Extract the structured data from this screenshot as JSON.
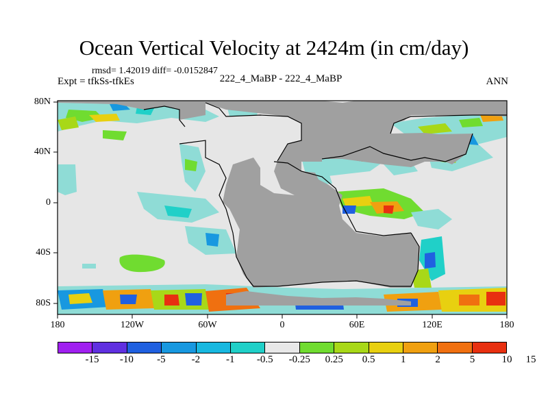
{
  "figure": {
    "title": "Ocean Vertical Velocity at 2424m (in cm/day)",
    "stats": "rmsd= 1.42019 diff= -0.0152847",
    "left_label": "Expt = tfkSs-tfkEs",
    "center_label": "222_4_MaBP - 222_4_MaBP",
    "right_label": "ANN"
  },
  "map": {
    "lat_labels": [
      "80N",
      "40N",
      "0",
      "40S",
      "80S"
    ],
    "lon_labels": [
      "180",
      "120W",
      "60W",
      "0",
      "60E",
      "120E",
      "180"
    ],
    "colors": {
      "land": "#a0a0a0",
      "near_zero": "#e6e6e6",
      "coastline": "#000000"
    }
  },
  "colorbar": {
    "colors": [
      "#a020f0",
      "#6030e0",
      "#2060e0",
      "#1898e0",
      "#18b8e0",
      "#20d0c8",
      "#e8e8e8",
      "#70dc30",
      "#a8d818",
      "#e8d010",
      "#f0a010",
      "#f07010",
      "#e83010"
    ],
    "labels": [
      "-15",
      "-10",
      "-5",
      "-2",
      "-1",
      "-0.5",
      "-0.25",
      "0.25",
      "0.5",
      "1",
      "2",
      "5",
      "10",
      "15"
    ]
  }
}
